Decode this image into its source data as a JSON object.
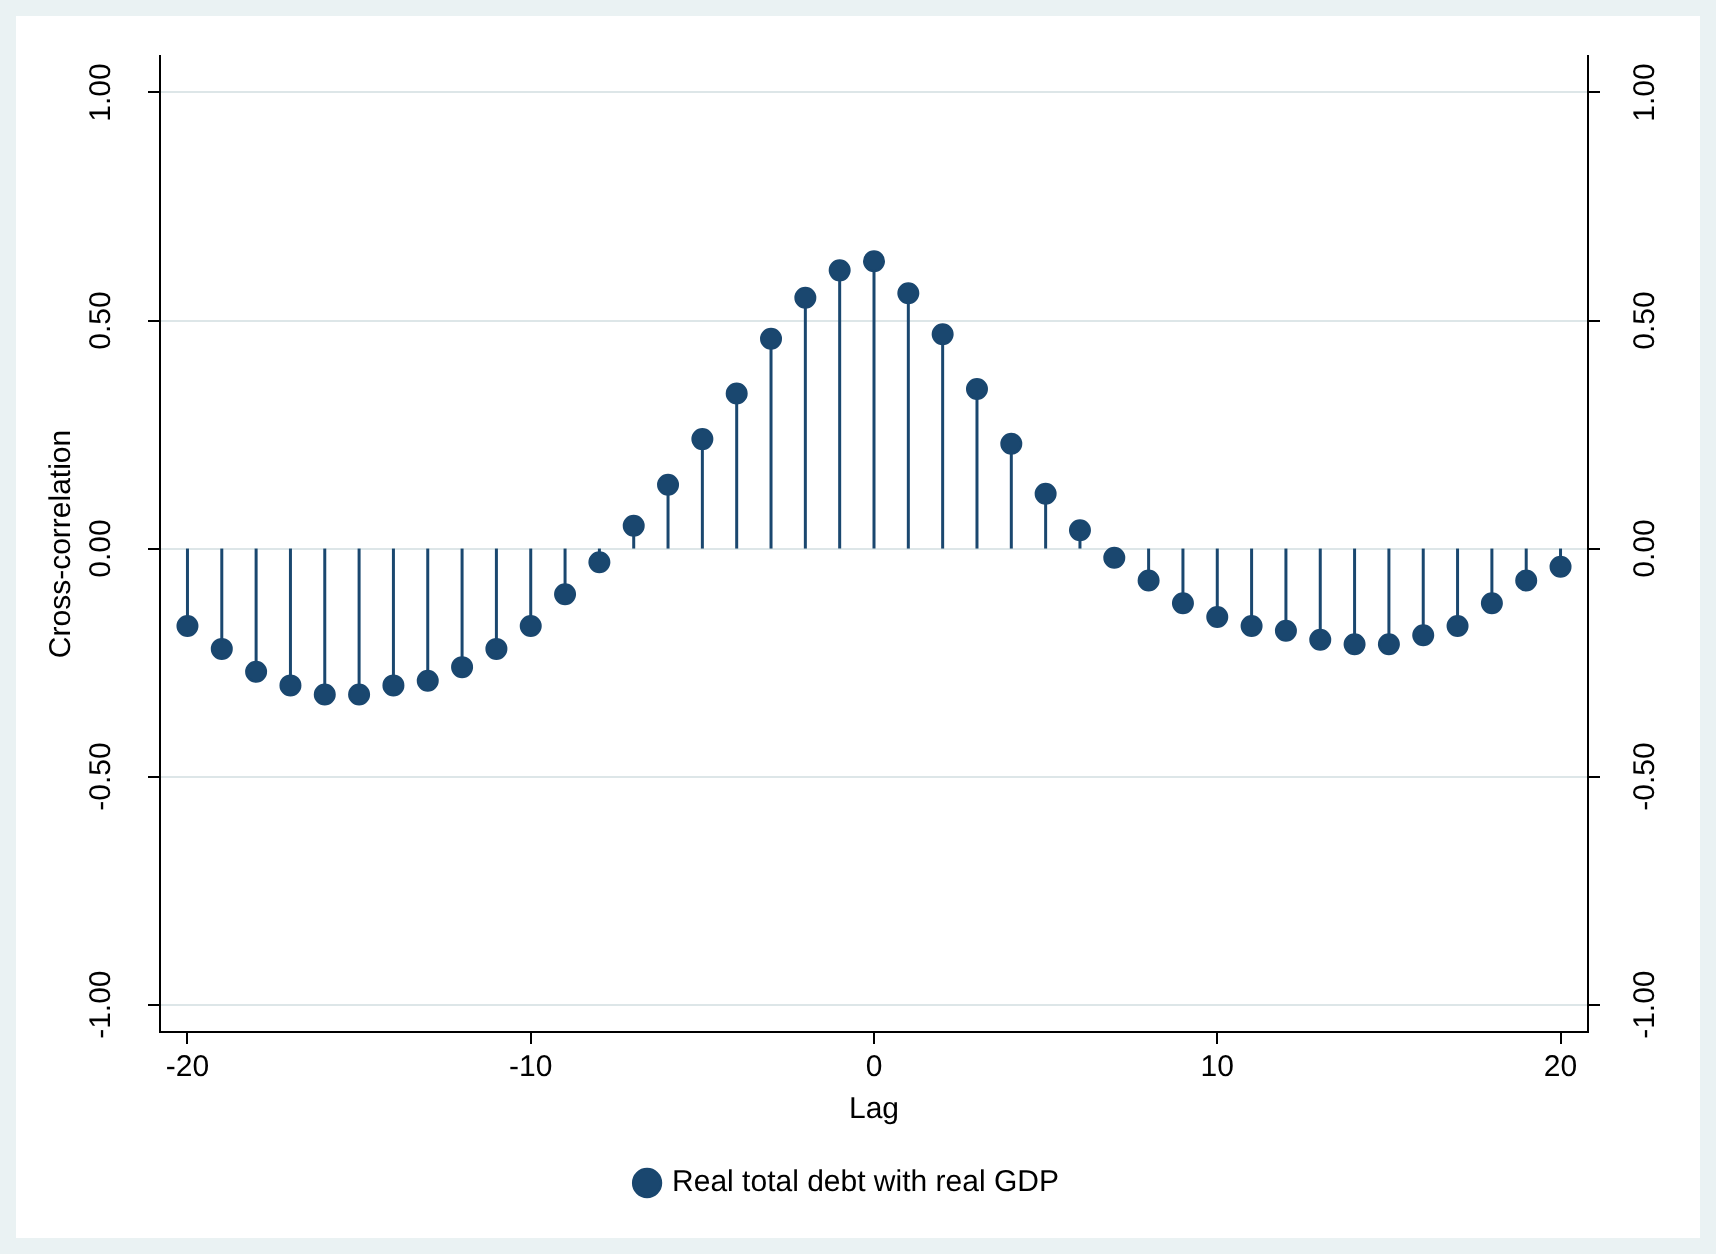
{
  "chart_data": {
    "type": "lollipop",
    "xlabel": "Lag",
    "ylabel": "Cross-correlation",
    "x": [
      -20,
      -19,
      -18,
      -17,
      -16,
      -15,
      -14,
      -13,
      -12,
      -11,
      -10,
      -9,
      -8,
      -7,
      -6,
      -5,
      -4,
      -3,
      -2,
      -1,
      0,
      1,
      2,
      3,
      4,
      5,
      6,
      7,
      8,
      9,
      10,
      11,
      12,
      13,
      14,
      15,
      16,
      17,
      18,
      19,
      20
    ],
    "series": [
      {
        "name": "Real total debt with real GDP",
        "color": "#1a476f",
        "values": [
          -0.17,
          -0.22,
          -0.27,
          -0.3,
          -0.32,
          -0.32,
          -0.3,
          -0.29,
          -0.26,
          -0.22,
          -0.17,
          -0.1,
          -0.03,
          0.05,
          0.14,
          0.24,
          0.34,
          0.46,
          0.55,
          0.61,
          0.63,
          0.56,
          0.47,
          0.35,
          0.23,
          0.12,
          0.04,
          -0.02,
          -0.07,
          -0.12,
          -0.15,
          -0.17,
          -0.18,
          -0.2,
          -0.21,
          -0.21,
          -0.19,
          -0.17,
          -0.12,
          -0.07,
          -0.04
        ]
      }
    ],
    "xlim": [
      -20.8,
      20.8
    ],
    "xticks": [
      -20,
      -10,
      0,
      10,
      20
    ],
    "ylim": [
      -1.06,
      1.08
    ],
    "yticks": [
      {
        "value": -1,
        "label": "-1.00"
      },
      {
        "value": -0.5,
        "label": "-0.50"
      },
      {
        "value": 0,
        "label": "0.00"
      },
      {
        "value": 0.5,
        "label": "0.50"
      },
      {
        "value": 1,
        "label": "1.00"
      }
    ],
    "y2lim": [
      -1.06,
      1.08
    ],
    "y2ticks": [
      {
        "value": -1,
        "label": "-1.00"
      },
      {
        "value": -0.5,
        "label": "-0.50"
      },
      {
        "value": 0,
        "label": "0.00"
      },
      {
        "value": 0.5,
        "label": "0.50"
      },
      {
        "value": 1,
        "label": "1.00"
      }
    ],
    "grid": "y",
    "legend": "bottom",
    "marker": "circle"
  }
}
